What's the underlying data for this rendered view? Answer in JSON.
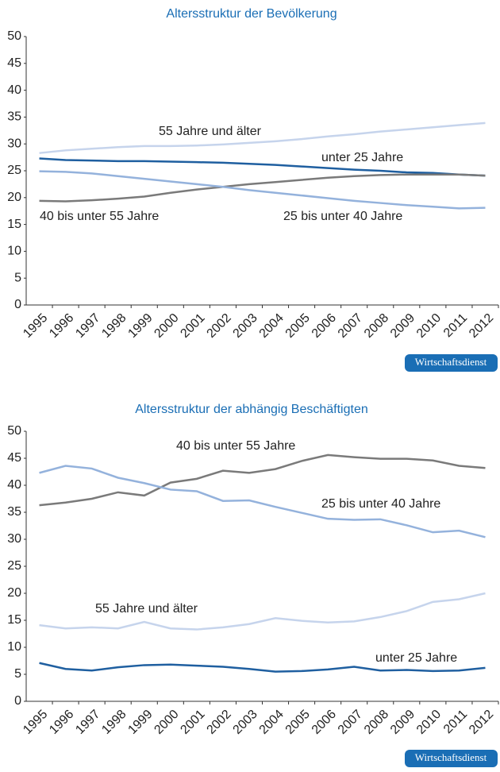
{
  "chart_data": [
    {
      "type": "line",
      "title": "Altersstruktur der Bevölkerung",
      "badge": "Wirtschaftsdienst",
      "categories": [
        "1995",
        "1996",
        "1997",
        "1998",
        "1999",
        "2000",
        "2001",
        "2002",
        "2003",
        "2004",
        "2005",
        "2006",
        "2007",
        "2008",
        "2009",
        "2010",
        "2011",
        "2012"
      ],
      "ylim": [
        0,
        50
      ],
      "yticks": [
        0,
        5,
        10,
        15,
        20,
        25,
        30,
        35,
        40,
        45,
        50
      ],
      "series": [
        {
          "name": "55 Jahre und älter",
          "color": "#c6d4ec",
          "values": [
            28.3,
            28.8,
            29.1,
            29.4,
            29.6,
            29.6,
            29.7,
            29.9,
            30.2,
            30.5,
            30.9,
            31.4,
            31.8,
            32.3,
            32.7,
            33.1,
            33.5,
            33.9
          ]
        },
        {
          "name": "unter 25 Jahre",
          "color": "#1f5fa0",
          "values": [
            27.3,
            27.0,
            26.9,
            26.8,
            26.8,
            26.7,
            26.6,
            26.5,
            26.3,
            26.1,
            25.8,
            25.5,
            25.2,
            25.0,
            24.7,
            24.6,
            24.3,
            24.1
          ]
        },
        {
          "name": "40 bis unter 55 Jahre",
          "color": "#7a7a7a",
          "values": [
            19.4,
            19.3,
            19.5,
            19.8,
            20.2,
            20.9,
            21.5,
            22.0,
            22.5,
            22.9,
            23.3,
            23.7,
            24.0,
            24.2,
            24.3,
            24.3,
            24.3,
            24.1
          ]
        },
        {
          "name": "25 bis unter 40 Jahre",
          "color": "#94b2dc",
          "values": [
            24.9,
            24.8,
            24.5,
            24.0,
            23.5,
            23.0,
            22.5,
            22.0,
            21.4,
            20.9,
            20.4,
            19.9,
            19.4,
            19.0,
            18.6,
            18.3,
            18.0,
            18.1
          ]
        }
      ]
    },
    {
      "type": "line",
      "title": "Altersstruktur der abhängig Beschäftigten",
      "badge": "Wirtschaftsdienst",
      "categories": [
        "1995",
        "1996",
        "1997",
        "1998",
        "1999",
        "2000",
        "2001",
        "2002",
        "2003",
        "2004",
        "2005",
        "2006",
        "2007",
        "2008",
        "2009",
        "2010",
        "2011",
        "2012"
      ],
      "ylim": [
        0,
        50
      ],
      "yticks": [
        0,
        5,
        10,
        15,
        20,
        25,
        30,
        35,
        40,
        45,
        50
      ],
      "series": [
        {
          "name": "40 bis unter 55 Jahre",
          "color": "#7a7a7a",
          "values": [
            36.3,
            36.8,
            37.5,
            38.7,
            38.1,
            40.5,
            41.2,
            42.7,
            42.3,
            43.0,
            44.5,
            45.6,
            45.2,
            44.9,
            44.9,
            44.6,
            43.6,
            43.2
          ]
        },
        {
          "name": "25 bis unter 40 Jahre",
          "color": "#94b2dc",
          "values": [
            42.3,
            43.6,
            43.1,
            41.4,
            40.4,
            39.2,
            38.9,
            37.1,
            37.2,
            36.0,
            34.9,
            33.8,
            33.6,
            33.7,
            32.6,
            31.3,
            31.6,
            30.4
          ]
        },
        {
          "name": "55 Jahre und älter",
          "color": "#c6d4ec",
          "values": [
            14.1,
            13.5,
            13.7,
            13.5,
            14.7,
            13.5,
            13.3,
            13.7,
            14.3,
            15.4,
            14.9,
            14.6,
            14.8,
            15.6,
            16.7,
            18.4,
            18.9,
            20.0
          ]
        },
        {
          "name": "unter 25 Jahre",
          "color": "#1f5fa0",
          "values": [
            7.1,
            6.0,
            5.7,
            6.3,
            6.7,
            6.8,
            6.6,
            6.4,
            6.0,
            5.5,
            5.6,
            5.9,
            6.4,
            5.7,
            5.8,
            5.6,
            5.7,
            6.2
          ]
        }
      ]
    }
  ]
}
